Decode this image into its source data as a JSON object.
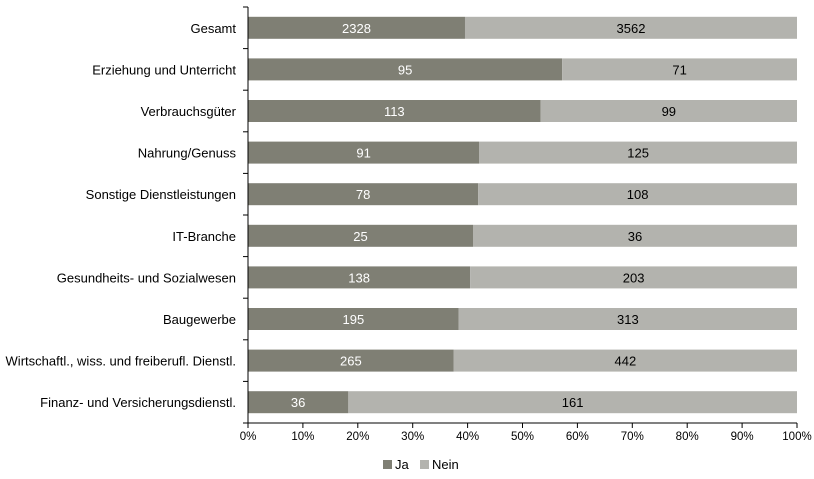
{
  "chart_data": {
    "type": "bar",
    "orientation": "horizontal",
    "stacked": "percent",
    "categories": [
      "Gesamt",
      "Erziehung und Unterricht",
      "Verbrauchsgüter",
      "Nahrung/Genuss",
      "Sonstige Dienstleistungen",
      "IT-Branche",
      "Gesundheits- und Sozialwesen",
      "Baugewerbe",
      "Wirtschaftl., wiss. und freiberufl. Dienstl.",
      "Finanz- und Versicherungsdienstl."
    ],
    "series": [
      {
        "name": "Ja",
        "color": "#7f7f74",
        "label_color": "#ffffff",
        "values": [
          2328,
          95,
          113,
          91,
          78,
          25,
          138,
          195,
          265,
          36
        ]
      },
      {
        "name": "Nein",
        "color": "#b3b3ae",
        "label_color": "#000000",
        "values": [
          3562,
          71,
          99,
          125,
          108,
          36,
          203,
          313,
          442,
          161
        ]
      }
    ],
    "x_ticks": [
      "0%",
      "10%",
      "20%",
      "30%",
      "40%",
      "50%",
      "60%",
      "70%",
      "80%",
      "90%",
      "100%"
    ],
    "xlim": [
      0,
      100
    ],
    "grid": false,
    "legend_position": "bottom"
  }
}
